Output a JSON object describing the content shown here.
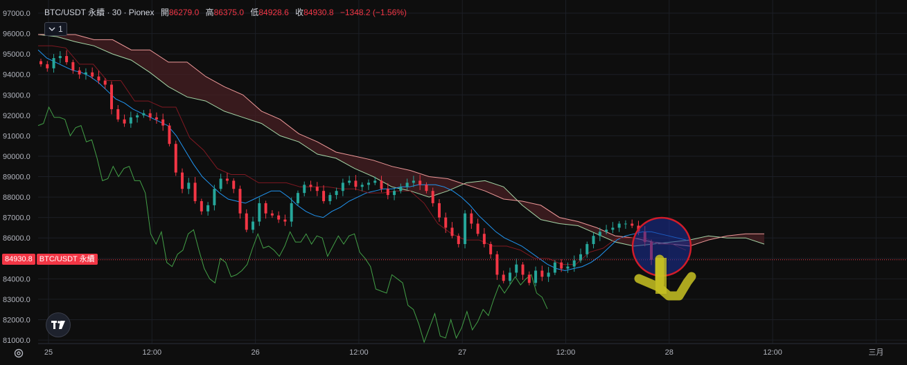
{
  "header": {
    "symbol": "BTC/USDT 永續 · 30 · Pionex",
    "open_label": "開",
    "open": "86279.0",
    "high_label": "高",
    "high": "86375.0",
    "low_label": "低",
    "low": "84928.6",
    "close_label": "收",
    "close": "84930.8",
    "change": "−1348.2 (−1.56%)"
  },
  "legend_toggle": {
    "icon": "chevron-down-icon",
    "count": "1"
  },
  "price_tag": {
    "price": "84930.8",
    "label": "BTC/USDT 永續"
  },
  "colors": {
    "up": "#26a69a",
    "down": "#f23645",
    "background": "#0e0e0e",
    "tenkan": "#2196f3",
    "kijun": "#801922",
    "chikou": "#43a047",
    "cloud_bear": "#4a1f24",
    "span_a": "#a5d6a7",
    "span_b": "#ef9a9a"
  },
  "chart_data": {
    "type": "candlestick",
    "indicator": "ichimoku",
    "y_ticks": [
      97000,
      96000,
      95000,
      94000,
      93000,
      92000,
      91000,
      90000,
      89000,
      88000,
      87000,
      86000,
      85000,
      84000,
      83000,
      82000,
      81000
    ],
    "y_tick_labels": [
      "97000.0",
      "96000.0",
      "95000.0",
      "94000.0",
      "93000.0",
      "92000.0",
      "91000.0",
      "90000.0",
      "89000.0",
      "88000.0",
      "87000.0",
      "86000.0",
      "85000.0",
      "84000.0",
      "83000.0",
      "82000.0",
      "81000.0"
    ],
    "ylim": [
      81000,
      97000
    ],
    "x_tick_labels": [
      "25",
      "12:00",
      "26",
      "12:00",
      "27",
      "12:00",
      "28",
      "12:00",
      "三月"
    ],
    "x_tick_hours": [
      0,
      12,
      24,
      36,
      48,
      60,
      72,
      84,
      96
    ],
    "last_price": 84930.8,
    "close_series": [
      94500,
      94300,
      94800,
      94900,
      94600,
      94200,
      94000,
      94100,
      93900,
      93700,
      93500,
      92300,
      91800,
      91600,
      91900,
      92000,
      92100,
      91900,
      91800,
      91500,
      90600,
      89200,
      88400,
      88700,
      87800,
      87300,
      87600,
      88400,
      88900,
      88800,
      88400,
      87200,
      86400,
      86800,
      87700,
      87200,
      87100,
      86900,
      86800,
      87700,
      88200,
      88600,
      88500,
      88300,
      87800,
      88100,
      88300,
      88700,
      88800,
      88500,
      88600,
      88700,
      88800,
      88400,
      88100,
      88300,
      88500,
      88700,
      88800,
      88600,
      88300,
      87700,
      87000,
      86500,
      86100,
      85700,
      87200,
      86700,
      86200,
      85700,
      85200,
      84200,
      83900,
      84300,
      84700,
      84200,
      83800,
      84400,
      84100,
      84300,
      84800,
      84500,
      84600,
      84900,
      85200,
      85700,
      86100,
      86300,
      86400,
      86500,
      86700,
      86700,
      86600,
      86300,
      85800,
      84930
    ],
    "tenkan_series": [
      95200,
      94800,
      94600,
      94400,
      94200,
      94100,
      93900,
      93600,
      93200,
      92800,
      92600,
      92300,
      92100,
      91900,
      91700,
      91500,
      91000,
      90300,
      89600,
      89000,
      88600,
      88200,
      87900,
      87800,
      87700,
      87900,
      88100,
      88300,
      88300,
      88000,
      87600,
      87300,
      87100,
      87000,
      87300,
      87500,
      87800,
      88000,
      88200,
      88300,
      88400,
      88400,
      88500,
      88500,
      88600,
      88600,
      88600,
      88500,
      88300,
      88000,
      87600,
      87100,
      86700,
      86300,
      86000,
      85800,
      85600,
      85300,
      85000,
      84700,
      84500,
      84400,
      84500,
      84600,
      84800,
      85100,
      85500,
      85900,
      86100,
      86200,
      86300,
      86300,
      86200,
      86100,
      86000,
      85900
    ],
    "kijun_series": [
      95400,
      95400,
      95300,
      94500,
      94500,
      93700,
      93700,
      92700,
      92700,
      92400,
      92400,
      90900,
      90300,
      89400,
      89100,
      89100,
      88700,
      88700,
      88700,
      88500,
      88500,
      88500,
      88400,
      88400,
      88200,
      88200,
      88300,
      88300,
      87700,
      86700,
      86200,
      85900,
      85900,
      85600,
      85600,
      85400,
      85000,
      85000,
      84700,
      84700,
      85300,
      85500,
      86000,
      86000,
      86000,
      85700,
      85700,
      85400
    ]
  }
}
